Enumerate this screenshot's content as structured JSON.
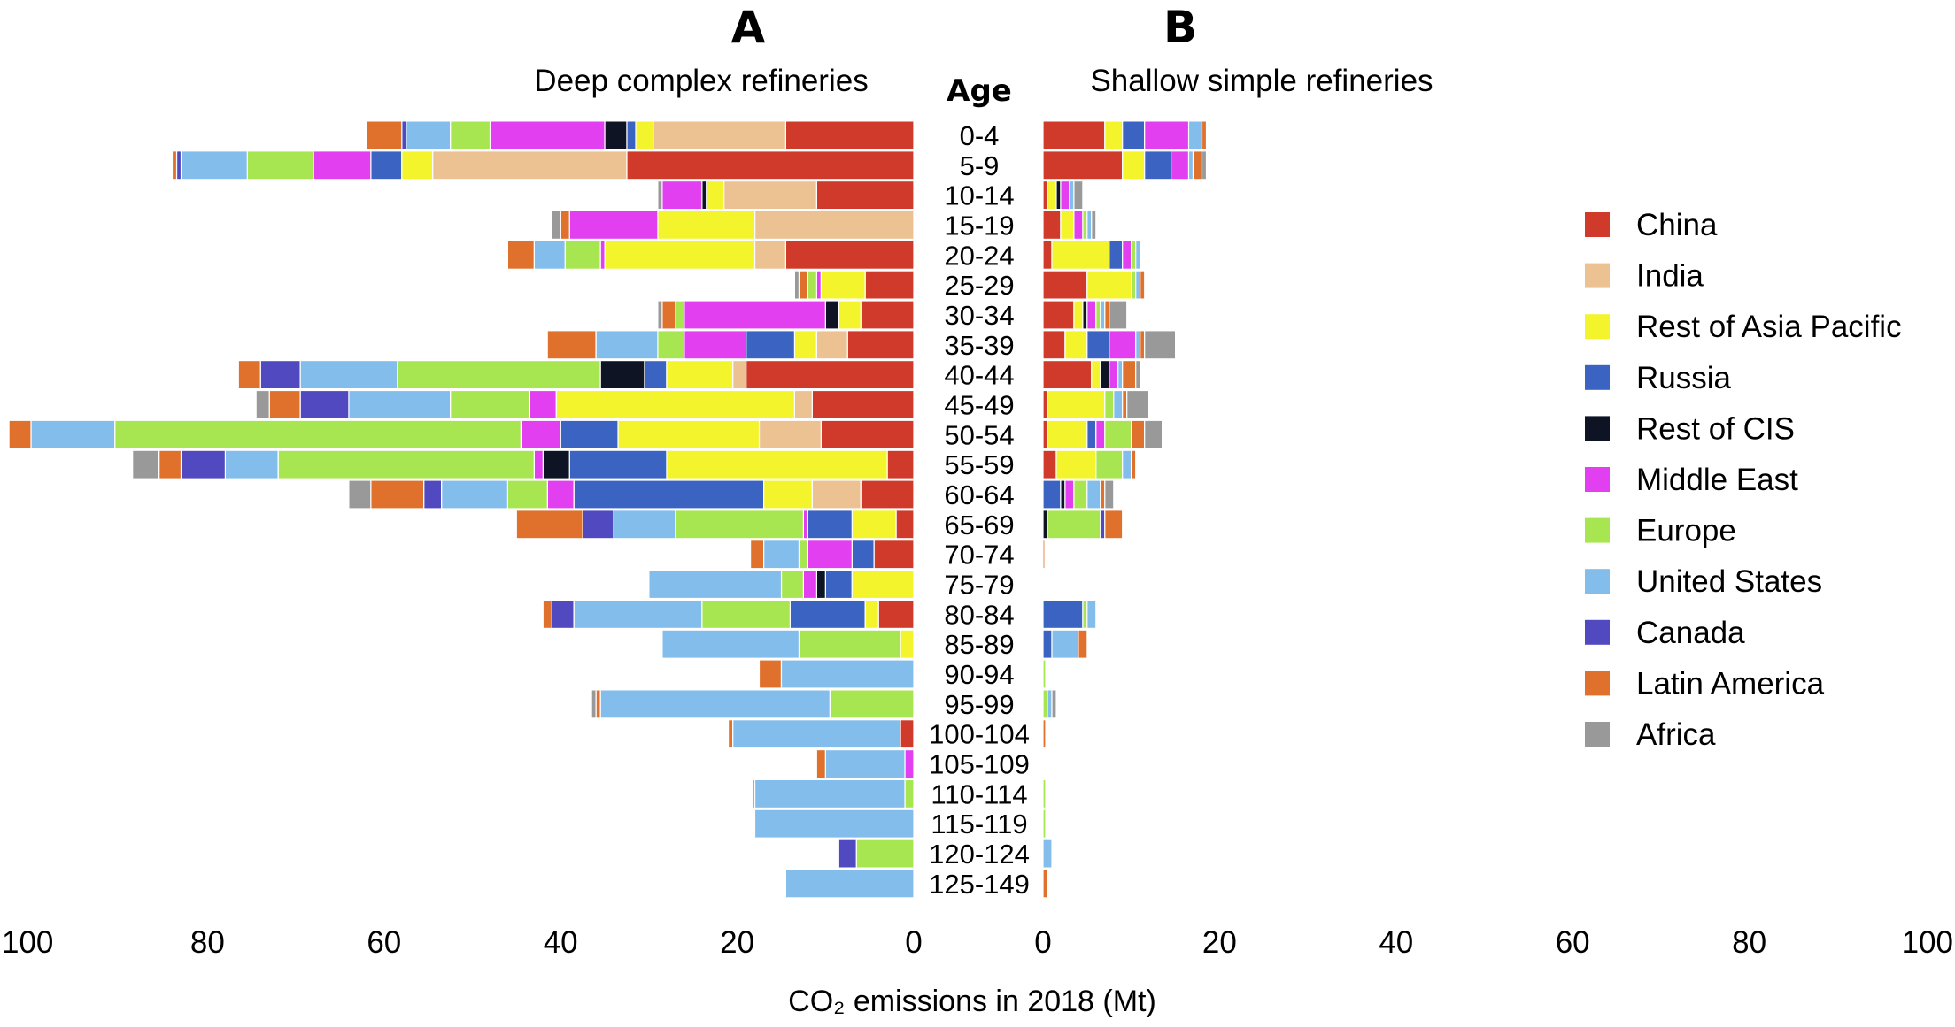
{
  "chart_data": {
    "type": "bar",
    "orientation": "horizontal",
    "stacked": true,
    "xlabel": "CO₂ emissions in 2018 (Mt)",
    "xlim": [
      0,
      100
    ],
    "xticks": [
      "100",
      "80",
      "60",
      "40",
      "20",
      "0",
      "0",
      "20",
      "40",
      "60",
      "80",
      "100"
    ],
    "age_header": "Age",
    "categories": [
      "0-4",
      "5-9",
      "10-14",
      "15-19",
      "20-24",
      "25-29",
      "30-34",
      "35-39",
      "40-44",
      "45-49",
      "50-54",
      "55-59",
      "60-64",
      "65-69",
      "70-74",
      "75-79",
      "80-84",
      "85-89",
      "90-94",
      "95-99",
      "100-104",
      "105-109",
      "110-114",
      "115-119",
      "120-124",
      "125-149"
    ],
    "legend": [
      {
        "name": "China",
        "color": "#cf3a2a"
      },
      {
        "name": "India",
        "color": "#edc293"
      },
      {
        "name": "Rest of Asia Pacific",
        "color": "#f4f42c"
      },
      {
        "name": "Russia",
        "color": "#3b63c2"
      },
      {
        "name": "Rest of CIS",
        "color": "#0e1424"
      },
      {
        "name": "Middle East",
        "color": "#e23ff0"
      },
      {
        "name": "Europe",
        "color": "#a8e651"
      },
      {
        "name": "United States",
        "color": "#82bdec"
      },
      {
        "name": "Canada",
        "color": "#5149c0"
      },
      {
        "name": "Latin America",
        "color": "#e0712c"
      },
      {
        "name": "Africa",
        "color": "#999999"
      }
    ],
    "legend_position": "right",
    "panels": [
      {
        "letter": "A",
        "title": "Deep complex refineries",
        "direction": "left",
        "series": [
          {
            "name": "China",
            "values": [
              14.5,
              32.5,
              11,
              0,
              14.5,
              5.5,
              6,
              7.5,
              19,
              11.5,
              10.5,
              3,
              6,
              2,
              4.5,
              0,
              4,
              0,
              0,
              0,
              1.5,
              0,
              0,
              0,
              0,
              0
            ]
          },
          {
            "name": "India",
            "values": [
              15,
              22,
              10.5,
              18,
              3.5,
              0,
              0,
              3.5,
              1.5,
              2,
              7,
              0,
              5.5,
              0,
              0,
              0,
              0,
              0,
              0,
              0,
              0,
              0,
              0,
              0,
              0,
              0
            ]
          },
          {
            "name": "Rest of Asia Pacific",
            "values": [
              2,
              3.5,
              2,
              11,
              17,
              5,
              2.5,
              2.5,
              7.5,
              27,
              16,
              25,
              5.5,
              5,
              0,
              7,
              1.5,
              1.5,
              0,
              0,
              0,
              0,
              0,
              0,
              0,
              0
            ]
          },
          {
            "name": "Russia",
            "values": [
              1,
              3.5,
              0,
              0,
              0,
              0,
              0,
              5.5,
              2.5,
              0,
              6.5,
              11,
              21.5,
              5,
              2.5,
              3,
              8.5,
              0,
              0,
              0,
              0,
              0,
              0,
              0,
              0,
              0
            ]
          },
          {
            "name": "Rest of CIS",
            "values": [
              2.5,
              0,
              0.5,
              0,
              0,
              0,
              1.5,
              0,
              5,
              0,
              0,
              3,
              0,
              0,
              0,
              1,
              0,
              0,
              0,
              0,
              0,
              0,
              0,
              0,
              0,
              0
            ]
          },
          {
            "name": "Middle East",
            "values": [
              13,
              6.5,
              4.5,
              10,
              0.5,
              0.5,
              16,
              7,
              0,
              3,
              4.5,
              1,
              3,
              0.5,
              5,
              1.5,
              0,
              0,
              0,
              0,
              0,
              1,
              0,
              0,
              0,
              0
            ]
          },
          {
            "name": "Europe",
            "values": [
              4.5,
              7.5,
              0,
              0,
              4,
              1,
              1,
              3,
              23,
              9,
              46,
              29,
              4.5,
              14.5,
              1,
              2.5,
              10,
              11.5,
              0,
              9.5,
              0,
              0,
              1,
              0,
              6.5,
              0
            ]
          },
          {
            "name": "United States",
            "values": [
              5,
              7.5,
              0,
              0,
              3.5,
              0,
              0,
              7,
              11,
              11.5,
              9.5,
              6,
              7.5,
              7,
              4,
              15,
              14.5,
              15.5,
              15,
              26,
              19,
              9,
              17,
              18,
              0,
              14.5
            ]
          },
          {
            "name": "Canada",
            "values": [
              0.5,
              0.5,
              0,
              0,
              0,
              0,
              0,
              0,
              4.5,
              5.5,
              0,
              5,
              2,
              3.5,
              0,
              0,
              2.5,
              0,
              0,
              0,
              0,
              0,
              0,
              0,
              2,
              0
            ]
          },
          {
            "name": "Latin America",
            "values": [
              4,
              0.5,
              0,
              1,
              3,
              1,
              1.5,
              5.5,
              2.5,
              3.5,
              2.5,
              2.5,
              6,
              7.5,
              1.5,
              0,
              1,
              0,
              2.5,
              0.5,
              0.5,
              1,
              0,
              0,
              0,
              0
            ]
          },
          {
            "name": "Africa",
            "values": [
              0,
              0,
              0.5,
              1,
              0,
              0.5,
              0.5,
              0,
              0,
              1.5,
              0,
              3,
              2.5,
              0,
              0,
              0,
              0,
              0,
              0,
              0.5,
              0,
              0,
              0.2,
              0,
              0,
              0
            ]
          }
        ]
      },
      {
        "letter": "B",
        "title": "Shallow simple refineries",
        "direction": "right",
        "series": [
          {
            "name": "China",
            "values": [
              7,
              9,
              0.5,
              2,
              1,
              5,
              3.5,
              2.5,
              5.5,
              0.5,
              0.5,
              1.5,
              0,
              0,
              0,
              0,
              0,
              0,
              0,
              0,
              0,
              0,
              0,
              0,
              0,
              0
            ]
          },
          {
            "name": "India",
            "values": [
              0,
              0,
              0,
              0,
              0,
              0,
              0,
              0,
              0,
              0,
              0,
              0,
              0,
              0,
              0,
              0,
              0,
              0,
              0,
              0,
              0,
              0,
              0,
              0,
              0,
              0
            ]
          },
          {
            "name": "Rest of Asia Pacific",
            "values": [
              2,
              2.5,
              1,
              1.5,
              6.5,
              5,
              1,
              2.5,
              1,
              6.5,
              4.5,
              4.5,
              0,
              0,
              0,
              0,
              0,
              0,
              0,
              0,
              0,
              0,
              0,
              0,
              0,
              0
            ]
          },
          {
            "name": "Russia",
            "values": [
              2.5,
              3,
              0,
              0,
              1.5,
              0,
              0,
              2.5,
              0,
              0,
              1,
              0,
              2,
              0,
              0,
              0,
              4.5,
              1,
              0,
              0,
              0,
              0,
              0,
              0,
              0,
              0
            ]
          },
          {
            "name": "Rest of CIS",
            "values": [
              0,
              0,
              0.5,
              0,
              0,
              0,
              0.5,
              0,
              1,
              0,
              0,
              0,
              0.5,
              0.5,
              0,
              0,
              0,
              0,
              0,
              0,
              0,
              0,
              0,
              0,
              0,
              0
            ]
          },
          {
            "name": "Middle East",
            "values": [
              5,
              2,
              1,
              1,
              1,
              0,
              1,
              3,
              1,
              0,
              1,
              0,
              1,
              0,
              0,
              0,
              0,
              0,
              0,
              0,
              0,
              0,
              0,
              0,
              0,
              0
            ]
          },
          {
            "name": "Europe",
            "values": [
              0,
              0,
              0,
              0.5,
              0.5,
              0.5,
              0.5,
              0,
              0,
              1,
              3,
              3,
              1.5,
              6,
              0,
              0,
              0.5,
              0,
              0.3,
              0.5,
              0,
              0,
              0.3,
              0.3,
              0,
              0
            ]
          },
          {
            "name": "United States",
            "values": [
              1.5,
              0.5,
              0.5,
              0.5,
              0.5,
              0.5,
              0.5,
              0.5,
              0.5,
              1,
              0,
              1,
              1.5,
              0,
              0,
              0,
              1,
              3,
              0,
              0.5,
              0,
              0,
              0,
              0,
              1,
              0
            ]
          },
          {
            "name": "Canada",
            "values": [
              0,
              0,
              0,
              0,
              0,
              0,
              0,
              0,
              0,
              0,
              0,
              0,
              0,
              0.5,
              0,
              0,
              0,
              0,
              0,
              0,
              0,
              0,
              0,
              0,
              0,
              0
            ]
          },
          {
            "name": "Latin America",
            "values": [
              0.5,
              1,
              0,
              0,
              0,
              0.5,
              0.5,
              0.5,
              1.5,
              0.5,
              1.5,
              0.5,
              0.5,
              2,
              0.2,
              0,
              0,
              1,
              0,
              0,
              0.3,
              0,
              0,
              0,
              0,
              0.5
            ]
          },
          {
            "name": "Africa",
            "values": [
              0,
              0.5,
              1,
              0.5,
              0,
              0,
              2,
              3.5,
              0.5,
              2.5,
              2,
              0,
              1,
              0,
              0,
              0,
              0,
              0,
              0,
              0.5,
              0,
              0,
              0,
              0,
              0,
              0
            ]
          }
        ]
      }
    ]
  }
}
